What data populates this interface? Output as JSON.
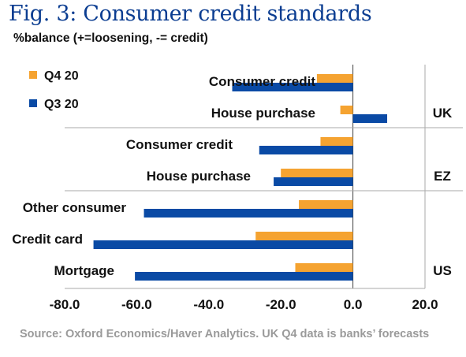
{
  "title": "Fig. 3: Consumer credit standards",
  "subtitle": "%balance (+=loosening, -= credit)",
  "source": "Source: Oxford Economics/Haver Analytics. UK Q4 data is banks’ forecasts",
  "chart_data": {
    "type": "bar",
    "orientation": "horizontal",
    "xlim": [
      -80,
      20
    ],
    "xticks": [
      "-80.0",
      "-60.0",
      "-40.0",
      "-20.0",
      "0.0",
      "20.0"
    ],
    "xtick_values": [
      -80,
      -60,
      -40,
      -20,
      0,
      20
    ],
    "categories": [
      "Consumer credit",
      "House purchase",
      "Consumer credit",
      "House purchase",
      "Other consumer",
      "Credit card",
      "Mortgage"
    ],
    "groups": [
      {
        "label": "UK",
        "categories": [
          0,
          1
        ]
      },
      {
        "label": "EZ",
        "categories": [
          2,
          3
        ]
      },
      {
        "label": "US",
        "categories": [
          4,
          5,
          6
        ]
      }
    ],
    "series": [
      {
        "name": "Q4 20",
        "color": "#f5a331",
        "values": [
          -10,
          -3.5,
          -9,
          -20,
          -15,
          -27,
          -16
        ]
      },
      {
        "name": "Q3 20",
        "color": "#0a4aa5",
        "values": [
          -33.5,
          9.5,
          -26,
          -22,
          -58,
          -72,
          -60.5
        ]
      }
    ],
    "legend": "top-left",
    "grid": false
  }
}
